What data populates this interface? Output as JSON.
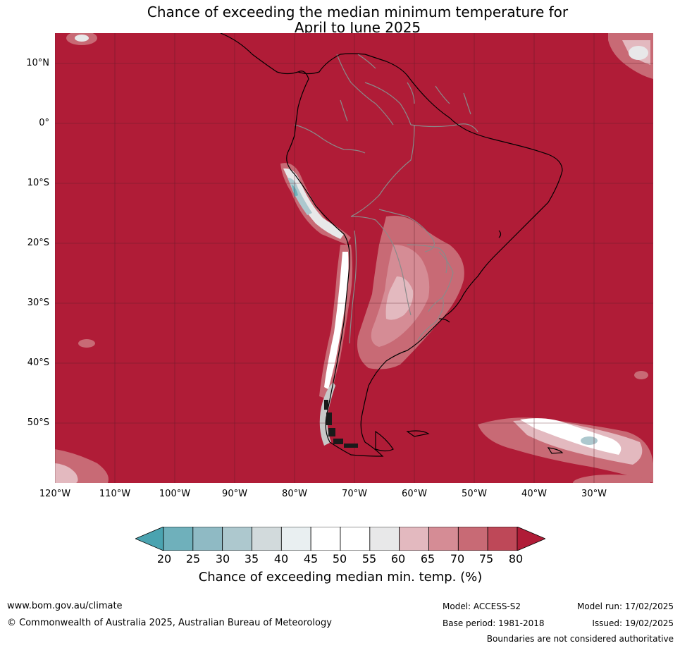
{
  "title_line1": "Chance of exceeding the median minimum temperature for",
  "title_line2": "April to June 2025",
  "lat_labels": [
    "10°N",
    "0°",
    "10°S",
    "20°S",
    "30°S",
    "40°S",
    "50°S"
  ],
  "lon_labels": [
    "120°W",
    "110°W",
    "100°W",
    "90°W",
    "80°W",
    "70°W",
    "60°W",
    "50°W",
    "40°W",
    "30°W"
  ],
  "colorbar": {
    "ticks": [
      "20",
      "25",
      "30",
      "35",
      "40",
      "45",
      "50",
      "55",
      "60",
      "65",
      "70",
      "75",
      "80"
    ],
    "colors": [
      "#4aa3b0",
      "#6fb0bb",
      "#8fbac4",
      "#adc8ce",
      "#d2dadc",
      "#e9eff1",
      "#ffffff",
      "#ffffff",
      "#e8e8e9",
      "#e3b9bf",
      "#d58c95",
      "#c86a75",
      "#be4858",
      "#b01c37"
    ],
    "label": "Chance of exceeding median min. temp. (%)"
  },
  "footer": {
    "website": "www.bom.gov.au/climate",
    "copyright": "© Commonwealth of Australia 2025, Australian Bureau of Meteorology",
    "model": "Model: ACCESS-S2",
    "base_period": "Base period: 1981-2018",
    "model_run": "Model run: 17/02/2025",
    "issued": "Issued: 19/02/2025",
    "disclaimer": "Boundaries are not considered authoritative"
  }
}
